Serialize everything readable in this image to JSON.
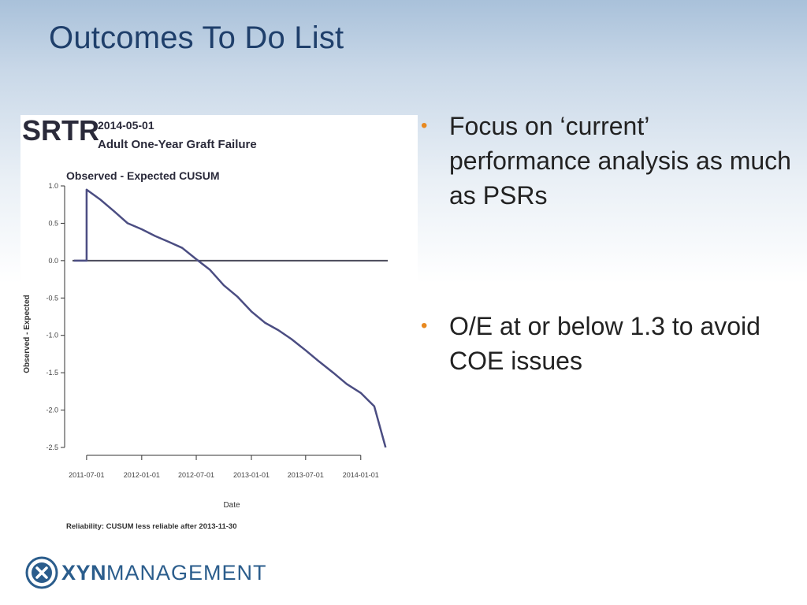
{
  "slide": {
    "title": "Outcomes To Do List",
    "bullets": [
      "Focus on ‘current’ performance analysis as much as PSRs",
      "O/E  at or below 1.3 to avoid COE issues"
    ]
  },
  "report_header": {
    "logo_text": "SRTR",
    "date": "2014-05-01",
    "subtitle": "Adult One-Year Graft Failure"
  },
  "chart_data": {
    "type": "line",
    "title": "Observed - Expected CUSUM",
    "xlabel": "Date",
    "ylabel": "Observed - Expected",
    "x_tick_labels": [
      "2011-07-01",
      "2012-01-01",
      "2012-07-01",
      "2013-01-01",
      "2013-07-01",
      "2014-01-01"
    ],
    "y_tick_labels": [
      "1.0",
      "0.5",
      "0.0",
      "-0.5",
      "-1.0",
      "-1.5",
      "-2.0",
      "-2.5"
    ],
    "y_ticks": [
      1.0,
      0.5,
      0.0,
      -0.5,
      -1.0,
      -1.5,
      -2.0,
      -2.5
    ],
    "ylim": [
      -2.5,
      1.0
    ],
    "xlim": [
      "2011-05-15",
      "2014-04-01"
    ],
    "reference_line": 0.0,
    "series": [
      {
        "x": [
          "2011-05-20",
          "2011-07-01",
          "2011-07-01",
          "2011-08-15",
          "2011-10-01",
          "2011-11-15",
          "2012-01-01",
          "2012-02-15",
          "2012-04-01",
          "2012-05-15",
          "2012-07-01",
          "2012-08-15",
          "2012-10-01",
          "2012-11-15",
          "2013-01-01",
          "2013-02-15",
          "2013-04-01",
          "2013-05-15",
          "2013-07-01",
          "2013-08-15",
          "2013-10-01",
          "2013-11-15",
          "2014-01-01",
          "2014-02-15",
          "2014-03-25"
        ],
        "y": [
          0.0,
          0.0,
          0.95,
          0.82,
          0.66,
          0.5,
          0.42,
          0.33,
          0.25,
          0.17,
          0.02,
          -0.12,
          -0.33,
          -0.48,
          -0.68,
          -0.83,
          -0.93,
          -1.05,
          -1.2,
          -1.35,
          -1.5,
          -1.65,
          -1.77,
          -1.95,
          -2.5
        ]
      }
    ],
    "line_color": "#4b4d82",
    "reliability_note": "Reliability: CUSUM less reliable after 2013-11-30"
  },
  "logo": {
    "bold": "XYN",
    "light": "MANAGEMENT",
    "color": "#2b5d8c"
  }
}
